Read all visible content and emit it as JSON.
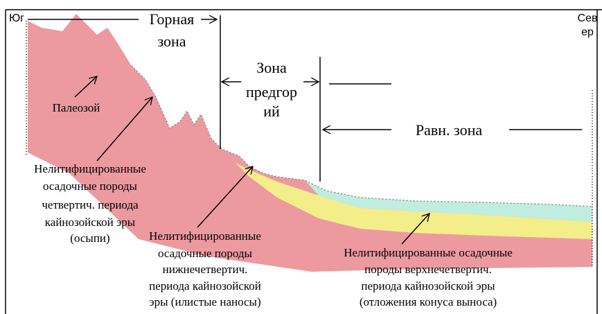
{
  "directions": {
    "south": "Юг",
    "north": [
      "Сев",
      "ер"
    ]
  },
  "zones": {
    "mountain": [
      "Горная",
      "зона"
    ],
    "foothills": [
      "Зона",
      "предгор",
      "ий"
    ],
    "plain": "Равн.  зона"
  },
  "layers": [
    {
      "label": [
        "Палеозой"
      ]
    },
    {
      "label": [
        "Нелитифицированные",
        "осадочные  породы",
        "четвертич.  периода",
        "кайнозойской  эры",
        "(осыпи)"
      ]
    },
    {
      "label": [
        "Нелитифицированные",
        "осадочные  породы",
        "нижнечетвертич.",
        "периода  кайнозойской",
        "эры  (илистые наносы)"
      ]
    },
    {
      "label": [
        "Нелитифицированные  осадочные",
        "породы  верхнечетвертич.",
        "периода  кайнозойской эры",
        "(отложения  конуса  выноса)"
      ]
    }
  ]
}
